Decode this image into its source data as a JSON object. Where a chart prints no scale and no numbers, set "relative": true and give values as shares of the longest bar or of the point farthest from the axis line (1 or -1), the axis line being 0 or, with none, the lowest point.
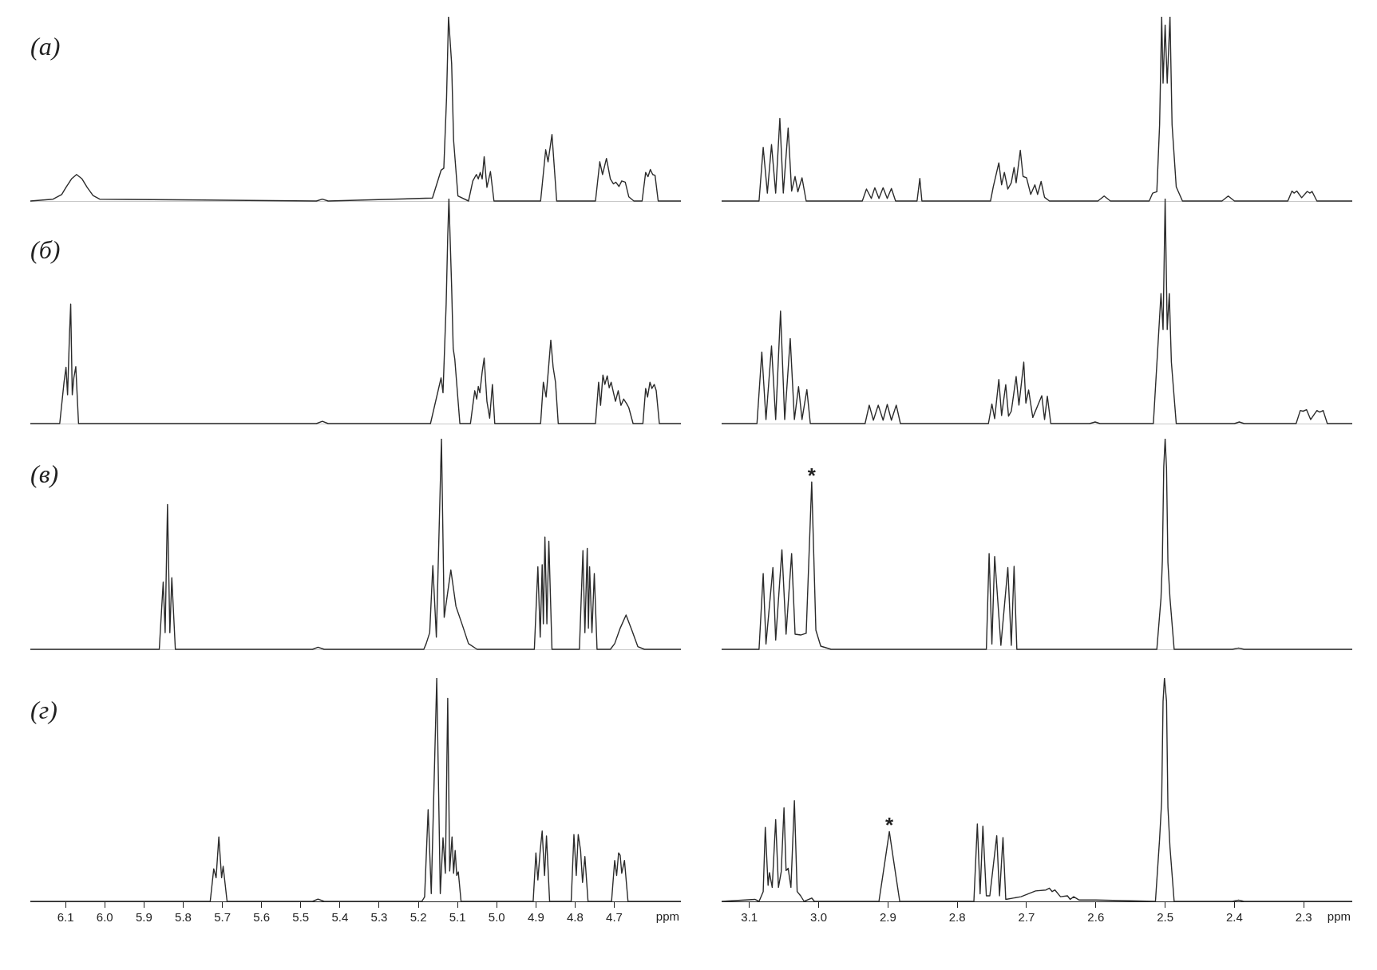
{
  "chart_data": [
    {
      "type": "line",
      "title": "(а)",
      "relative": true,
      "xlim": [
        6.19,
        4.53
      ],
      "tick_labels": false,
      "series": [
        {
          "color": "#2b2b2b",
          "x": [
            6.19,
            6.132,
            6.11,
            6.099,
            6.085,
            6.072,
            6.058,
            6.045,
            6.03,
            6.013,
            5.46,
            5.445,
            5.43,
            5.164,
            5.142,
            5.135,
            5.128,
            5.123,
            5.115,
            5.11,
            5.099,
            5.072,
            5.061,
            5.052,
            5.047,
            5.042,
            5.037,
            5.032,
            5.025,
            5.016,
            5.007,
            4.888,
            4.875,
            4.869,
            4.859,
            4.847,
            4.748,
            4.737,
            4.73,
            4.72,
            4.71,
            4.702,
            4.696,
            4.688,
            4.681,
            4.672,
            4.663,
            4.65,
            4.629,
            4.62,
            4.614,
            4.608,
            4.602,
            4.596,
            4.588,
            4.53
          ],
          "values": [
            0,
            0.01,
            0.035,
            0.074,
            0.12,
            0.144,
            0.12,
            0.074,
            0.03,
            0.01,
            0,
            0.01,
            0,
            0.016,
            0.167,
            0.178,
            0.56,
            1,
            0.745,
            0.329,
            0.028,
            0,
            0.109,
            0.144,
            0.12,
            0.155,
            0.12,
            0.241,
            0.074,
            0.16,
            0,
            0,
            0.278,
            0.213,
            0.361,
            0,
            0,
            0.213,
            0.144,
            0.231,
            0.12,
            0.093,
            0.102,
            0.079,
            0.109,
            0.102,
            0.023,
            0,
            0,
            0.155,
            0.132,
            0.171,
            0.144,
            0.139,
            0,
            0
          ]
        }
      ]
    },
    {
      "type": "line",
      "relative": true,
      "xlim": [
        3.14,
        2.23
      ],
      "tick_labels": false,
      "series": [
        {
          "color": "#2b2b2b",
          "x": [
            3.14,
            3.086,
            3.08,
            3.074,
            3.068,
            3.062,
            3.056,
            3.051,
            3.044,
            3.039,
            3.034,
            3.03,
            3.024,
            3.018,
            2.937,
            2.931,
            2.924,
            2.919,
            2.913,
            2.907,
            2.901,
            2.895,
            2.889,
            2.858,
            2.854,
            2.851,
            2.752,
            2.748,
            2.74,
            2.736,
            2.732,
            2.727,
            2.722,
            2.718,
            2.715,
            2.709,
            2.705,
            2.7,
            2.694,
            2.688,
            2.684,
            2.679,
            2.674,
            2.667,
            2.597,
            2.588,
            2.579,
            2.523,
            2.518,
            2.512,
            2.508,
            2.505,
            2.503,
            2.5,
            2.497,
            2.493,
            2.49,
            2.484,
            2.475,
            2.418,
            2.409,
            2.4,
            2.323,
            2.317,
            2.314,
            2.31,
            2.303,
            2.295,
            2.291,
            2.288,
            2.281,
            2.23
          ],
          "values": [
            0,
            0,
            0.291,
            0.043,
            0.306,
            0.043,
            0.448,
            0.043,
            0.396,
            0.054,
            0.133,
            0.05,
            0.126,
            0,
            0,
            0.065,
            0.014,
            0.072,
            0.014,
            0.072,
            0.014,
            0.068,
            0,
            0,
            0.122,
            0,
            0,
            0.077,
            0.207,
            0.088,
            0.155,
            0.065,
            0.099,
            0.182,
            0.099,
            0.275,
            0.133,
            0.126,
            0.036,
            0.088,
            0.036,
            0.106,
            0.02,
            0,
            0,
            0.027,
            0,
            0,
            0.043,
            0.05,
            0.414,
            1,
            0.64,
            0.955,
            0.64,
            1,
            0.414,
            0.077,
            0,
            0,
            0.027,
            0,
            0,
            0.054,
            0.043,
            0.054,
            0.018,
            0.052,
            0.043,
            0.052,
            0,
            0
          ]
        }
      ]
    },
    {
      "type": "line",
      "title": "(б)",
      "relative": true,
      "xlim": [
        6.19,
        4.53
      ],
      "tick_labels": false,
      "series": [
        {
          "color": "#2b2b2b",
          "x": [
            6.19,
            6.115,
            6.104,
            6.099,
            6.095,
            6.09,
            6.087,
            6.083,
            6.079,
            6.074,
            6.067,
            5.46,
            5.445,
            5.43,
            5.169,
            5.142,
            5.137,
            5.129,
            5.125,
            5.122,
            5.115,
            5.111,
            5.107,
            5.094,
            5.067,
            5.061,
            5.056,
            5.051,
            5.047,
            5.043,
            5.037,
            5.032,
            5.025,
            5.018,
            5.011,
            5.005,
            4.888,
            4.881,
            4.874,
            4.869,
            4.862,
            4.856,
            4.85,
            4.843,
            4.748,
            4.74,
            4.735,
            4.729,
            4.724,
            4.718,
            4.713,
            4.708,
            4.702,
            4.697,
            4.69,
            4.683,
            4.676,
            4.669,
            4.663,
            4.652,
            4.627,
            4.62,
            4.615,
            4.609,
            4.604,
            4.598,
            4.593,
            4.585,
            4.53
          ],
          "values": [
            0,
            0,
            0.184,
            0.25,
            0.128,
            0.4,
            0.531,
            0.128,
            0.203,
            0.253,
            0,
            0,
            0.01,
            0,
            0,
            0.203,
            0.137,
            0.531,
            0.831,
            1,
            0.606,
            0.334,
            0.287,
            0,
            0,
            0.081,
            0.146,
            0.109,
            0.165,
            0.137,
            0.231,
            0.291,
            0.099,
            0.024,
            0.174,
            0,
            0,
            0.184,
            0.118,
            0.221,
            0.371,
            0.25,
            0.184,
            0,
            0,
            0.184,
            0.081,
            0.216,
            0.174,
            0.212,
            0.159,
            0.184,
            0.137,
            0.099,
            0.146,
            0.081,
            0.109,
            0.09,
            0.071,
            0,
            0,
            0.156,
            0.118,
            0.184,
            0.156,
            0.174,
            0.146,
            0,
            0
          ]
        }
      ]
    },
    {
      "type": "line",
      "relative": true,
      "xlim": [
        3.14,
        2.23
      ],
      "tick_labels": false,
      "series": [
        {
          "color": "#2b2b2b",
          "x": [
            3.14,
            3.089,
            3.082,
            3.076,
            3.068,
            3.062,
            3.055,
            3.049,
            3.041,
            3.035,
            3.029,
            3.024,
            3.017,
            3.012,
            2.933,
            2.927,
            2.921,
            2.914,
            2.907,
            2.901,
            2.895,
            2.888,
            2.882,
            2.755,
            2.75,
            2.746,
            2.74,
            2.736,
            2.73,
            2.726,
            2.722,
            2.715,
            2.711,
            2.704,
            2.701,
            2.697,
            2.691,
            2.678,
            2.674,
            2.67,
            2.665,
            2.609,
            2.601,
            2.594,
            2.517,
            2.506,
            2.503,
            2.5,
            2.497,
            2.494,
            2.491,
            2.484,
            2.4,
            2.393,
            2.386,
            2.311,
            2.305,
            2.301,
            2.296,
            2.29,
            2.281,
            2.277,
            2.272,
            2.266,
            2.23
          ],
          "values": [
            0,
            0,
            0.318,
            0.018,
            0.345,
            0.018,
            0.5,
            0.018,
            0.378,
            0.018,
            0.164,
            0.018,
            0.151,
            0,
            0,
            0.082,
            0.015,
            0.082,
            0.015,
            0.085,
            0.015,
            0.082,
            0,
            0,
            0.087,
            0.022,
            0.196,
            0.036,
            0.173,
            0.033,
            0.055,
            0.209,
            0.082,
            0.273,
            0.091,
            0.149,
            0.027,
            0.124,
            0.018,
            0.122,
            0,
            0,
            0.007,
            0,
            0,
            0.578,
            0.418,
            1,
            0.418,
            0.578,
            0.273,
            0,
            0,
            0.007,
            0,
            0,
            0.058,
            0.055,
            0.062,
            0.018,
            0.058,
            0.051,
            0.058,
            0,
            0
          ]
        }
      ]
    },
    {
      "type": "line",
      "title": "(в)",
      "relative": true,
      "xlim": [
        6.19,
        4.53
      ],
      "tick_labels": false,
      "series": [
        {
          "color": "#2b2b2b",
          "x": [
            6.19,
            5.861,
            5.851,
            5.846,
            5.84,
            5.834,
            5.829,
            5.82,
            5.47,
            5.456,
            5.44,
            5.186,
            5.18,
            5.171,
            5.163,
            5.154,
            5.141,
            5.134,
            5.117,
            5.104,
            5.088,
            5.072,
            5.05,
            4.904,
            4.895,
            4.889,
            4.884,
            4.881,
            4.877,
            4.872,
            4.867,
            4.859,
            4.789,
            4.78,
            4.775,
            4.769,
            4.766,
            4.763,
            4.757,
            4.751,
            4.744,
            4.71,
            4.699,
            4.685,
            4.67,
            4.655,
            4.64,
            4.623,
            4.53
          ],
          "values": [
            0,
            0,
            0.319,
            0.079,
            0.688,
            0.079,
            0.34,
            0,
            0,
            0.01,
            0,
            0,
            0.027,
            0.079,
            0.398,
            0.058,
            1,
            0.152,
            0.377,
            0.204,
            0.117,
            0.027,
            0,
            0,
            0.392,
            0.058,
            0.402,
            0.121,
            0.533,
            0.121,
            0.513,
            0,
            0,
            0.469,
            0.079,
            0.479,
            0.1,
            0.392,
            0.079,
            0.36,
            0,
            0,
            0.027,
            0.1,
            0.163,
            0.09,
            0.013,
            0,
            0
          ]
        }
      ]
    },
    {
      "type": "line",
      "relative": true,
      "xlim": [
        3.14,
        2.23
      ],
      "tick_labels": false,
      "annotations": [
        {
          "text": "*",
          "x": 3.01,
          "y": 0.795
        }
      ],
      "series": [
        {
          "color": "#2b2b2b",
          "x": [
            3.14,
            3.086,
            3.08,
            3.076,
            3.066,
            3.062,
            3.053,
            3.047,
            3.039,
            3.034,
            3.026,
            3.018,
            3.01,
            3.004,
            2.997,
            2.982,
            2.758,
            2.754,
            2.75,
            2.746,
            2.737,
            2.727,
            2.722,
            2.718,
            2.714,
            2.512,
            2.506,
            2.504,
            2.502,
            2.5,
            2.498,
            2.496,
            2.493,
            2.487,
            2.403,
            2.394,
            2.386,
            2.23
          ],
          "values": [
            0,
            0,
            0.36,
            0.025,
            0.388,
            0.044,
            0.473,
            0.072,
            0.455,
            0.072,
            0.068,
            0.076,
            0.795,
            0.091,
            0.015,
            0,
            0,
            0.455,
            0.025,
            0.441,
            0.019,
            0.388,
            0.019,
            0.394,
            0,
            0,
            0.242,
            0.422,
            0.867,
            1,
            0.858,
            0.413,
            0.242,
            0,
            0,
            0.006,
            0,
            0
          ]
        }
      ]
    },
    {
      "type": "line",
      "title": "(г)",
      "relative": true,
      "xlim": [
        6.19,
        4.53
      ],
      "tick_labels": "x",
      "xlabel": "ppm",
      "xticks": [
        6.1,
        {
          "value": 6,
          "label": "6.0"
        },
        5.9,
        5.8,
        5.7,
        5.6,
        5.5,
        5.4,
        5.3,
        5.2,
        5.1,
        {
          "value": 5,
          "label": "5.0"
        },
        4.9,
        4.8,
        4.7
      ],
      "series": [
        {
          "color": "#2b2b2b",
          "x": [
            6.19,
            5.731,
            5.722,
            5.716,
            5.709,
            5.702,
            5.698,
            5.688,
            5.47,
            5.456,
            5.44,
            5.191,
            5.184,
            5.175,
            5.167,
            5.153,
            5.144,
            5.137,
            5.131,
            5.125,
            5.12,
            5.114,
            5.11,
            5.106,
            5.102,
            5.098,
            5.091,
            4.907,
            4.9,
            4.895,
            4.889,
            4.884,
            4.878,
            4.873,
            4.865,
            4.81,
            4.803,
            4.797,
            4.792,
            4.786,
            4.781,
            4.775,
            4.767,
            4.707,
            4.699,
            4.694,
            4.689,
            4.685,
            4.681,
            4.674,
            4.665,
            4.53
          ],
          "values": [
            0,
            0,
            0.146,
            0.106,
            0.289,
            0.106,
            0.157,
            0,
            0,
            0.01,
            0,
            0,
            0.02,
            0.411,
            0.035,
            1,
            0.035,
            0.285,
            0.126,
            0.909,
            0.136,
            0.289,
            0.126,
            0.228,
            0.116,
            0.132,
            0,
            0,
            0.217,
            0.096,
            0.228,
            0.315,
            0.116,
            0.293,
            0,
            0,
            0.299,
            0.116,
            0.299,
            0.228,
            0.085,
            0.201,
            0,
            0,
            0.183,
            0.116,
            0.217,
            0.207,
            0.126,
            0.183,
            0,
            0
          ]
        }
      ]
    },
    {
      "type": "line",
      "relative": true,
      "xlim": [
        3.14,
        2.23
      ],
      "tick_labels": "x",
      "xlabel": "ppm",
      "annotations": [
        {
          "text": "*",
          "x": 2.898,
          "y": 0.313
        }
      ],
      "xticks": [
        3.1,
        {
          "value": 3,
          "label": "3.0"
        },
        2.9,
        2.8,
        2.7,
        2.6,
        2.5,
        2.4,
        2.3
      ],
      "series": [
        {
          "color": "#2b2b2b",
          "x": [
            3.14,
            3.092,
            3.086,
            3.08,
            3.077,
            3.073,
            3.071,
            3.067,
            3.062,
            3.058,
            3.054,
            3.05,
            3.047,
            3.044,
            3.04,
            3.035,
            3.031,
            3.026,
            3.021,
            3.01,
            3.006,
            2.913,
            2.904,
            2.898,
            2.892,
            2.883,
            2.776,
            2.771,
            2.767,
            2.763,
            2.758,
            2.753,
            2.743,
            2.739,
            2.734,
            2.73,
            2.708,
            2.687,
            2.672,
            2.667,
            2.663,
            2.659,
            2.651,
            2.641,
            2.637,
            2.632,
            2.624,
            2.6,
            2.514,
            2.508,
            2.505,
            2.503,
            2.501,
            2.498,
            2.496,
            2.493,
            2.487,
            2.403,
            2.394,
            2.386,
            2.23
          ],
          "values": [
            0,
            0.009,
            0,
            0.044,
            0.331,
            0.072,
            0.129,
            0.063,
            0.366,
            0.063,
            0.133,
            0.419,
            0.138,
            0.148,
            0.063,
            0.451,
            0.044,
            0.025,
            0,
            0.015,
            0,
            0,
            0.186,
            0.313,
            0.186,
            0,
            0,
            0.347,
            0.034,
            0.337,
            0.025,
            0.025,
            0.294,
            0.025,
            0.286,
            0.009,
            0.021,
            0.047,
            0.051,
            0.059,
            0.044,
            0.051,
            0.021,
            0.025,
            0.009,
            0.021,
            0.006,
            0.006,
            0,
            0.28,
            0.451,
            0.896,
            1,
            0.896,
            0.422,
            0.242,
            0,
            0,
            0.006,
            0,
            0
          ]
        }
      ]
    }
  ]
}
